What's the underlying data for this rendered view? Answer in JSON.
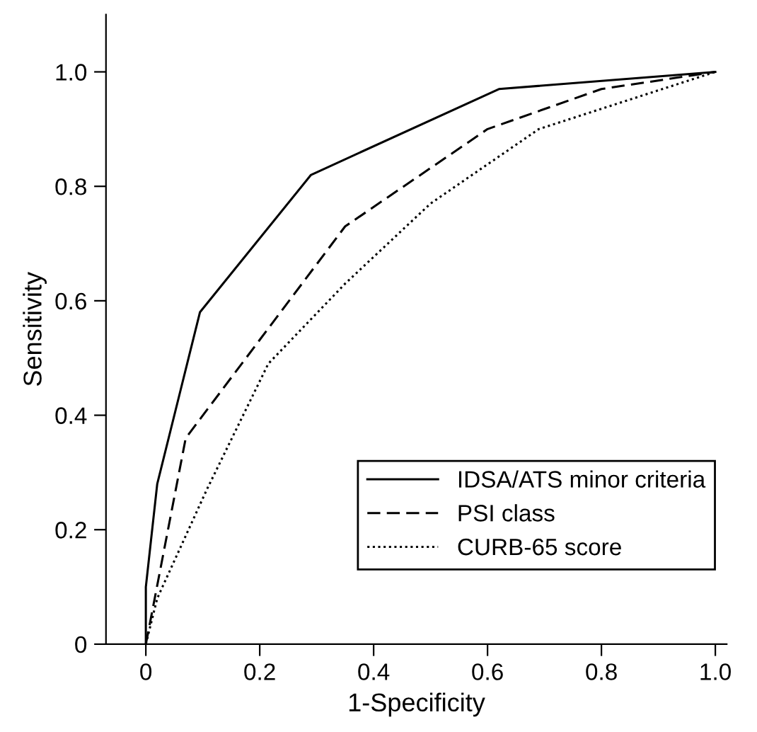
{
  "chart_data": {
    "type": "line",
    "xlabel": "1-Specificity",
    "ylabel": "Sensitivity",
    "xlim": [
      -0.07,
      1.02
    ],
    "ylim": [
      0,
      1.1
    ],
    "xticks": [
      0,
      {
        "value": 0.2,
        "label": "0.2"
      },
      {
        "value": 0.4,
        "label": "0.4"
      },
      {
        "value": 0.6,
        "label": "0.6"
      },
      {
        "value": 0.8,
        "label": "0.8"
      },
      {
        "value": 1.0,
        "label": "1.0"
      }
    ],
    "yticks": [
      0,
      {
        "value": 0.2,
        "label": "0.2"
      },
      {
        "value": 0.4,
        "label": "0.4"
      },
      {
        "value": 0.6,
        "label": "0.6"
      },
      {
        "value": 0.8,
        "label": "0.8"
      },
      {
        "value": 1.0,
        "label": "1.0"
      }
    ],
    "grid": false,
    "legend": "bottom right",
    "marker": "none",
    "series": [
      {
        "name": "IDSA/ATS minor criteria",
        "color": "#000000",
        "line_style": "solid",
        "x": [
          0,
          0,
          0.02,
          0.095,
          0.29,
          0.62,
          1.0
        ],
        "values": [
          0,
          0.1,
          0.28,
          0.58,
          0.82,
          0.97,
          1.0
        ]
      },
      {
        "name": "PSI class",
        "color": "#000000",
        "line_style": "dashed",
        "x": [
          0,
          0.07,
          0.35,
          0.6,
          0.8,
          1.0
        ],
        "values": [
          0,
          0.36,
          0.73,
          0.9,
          0.97,
          1.0
        ]
      },
      {
        "name": "CURB-65 score",
        "color": "#000000",
        "line_style": "dotted",
        "x": [
          0,
          0.02,
          0.107,
          0.215,
          0.35,
          0.5,
          0.69,
          1.0
        ],
        "values": [
          0,
          0.08,
          0.27,
          0.49,
          0.63,
          0.77,
          0.9,
          1.0
        ]
      }
    ]
  }
}
